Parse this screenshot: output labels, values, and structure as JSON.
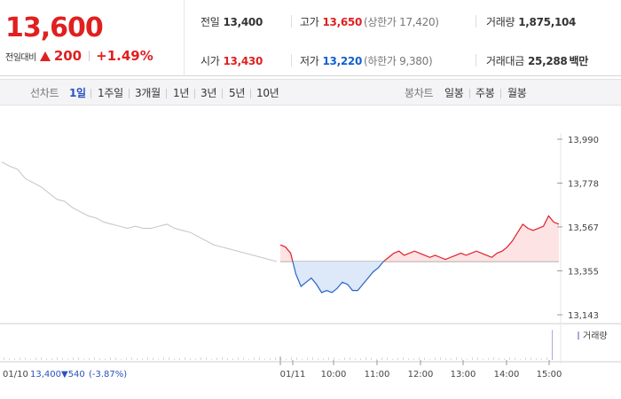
{
  "header": {
    "price": "13,600",
    "change_label": "전일대비",
    "change_value": "200",
    "change_pct": "+1.49%"
  },
  "stats": {
    "prev_label": "전일",
    "prev_value": "13,400",
    "high_label": "고가",
    "high_value": "13,650",
    "upper_limit": "(상한가 17,420)",
    "volume_label": "거래량",
    "volume_value": "1,875,104",
    "open_label": "시가",
    "open_value": "13,430",
    "low_label": "저가",
    "low_value": "13,220",
    "lower_limit": "(하한가 9,380)",
    "amount_label": "거래대금",
    "amount_value": "25,288",
    "amount_unit": "백만"
  },
  "toolbar": {
    "line_label": "선차트",
    "line_periods": [
      "1일",
      "1주일",
      "3개월",
      "1년",
      "3년",
      "5년",
      "10년"
    ],
    "active_period": "1일",
    "candle_label": "봉차트",
    "candle_periods": [
      "일봉",
      "주봉",
      "월봉"
    ]
  },
  "chart_data": {
    "type": "line",
    "y_ticks": [
      "13,990",
      "13,778",
      "13,567",
      "13,355",
      "13,143"
    ],
    "ylim": [
      13143,
      13990
    ],
    "baseline": 13400,
    "x_ticks": [
      "01/11",
      "10:00",
      "11:00",
      "12:00",
      "13:00",
      "14:00",
      "15:00"
    ],
    "volume_legend": "거래량",
    "prev_day": {
      "date": "01/10",
      "close": "13,400",
      "change": "▼540",
      "change_pct": "(-3.87%)",
      "values": [
        13880,
        13860,
        13845,
        13800,
        13780,
        13760,
        13730,
        13700,
        13690,
        13660,
        13640,
        13620,
        13610,
        13590,
        13580,
        13570,
        13560,
        13570,
        13560,
        13560,
        13570,
        13580,
        13560,
        13550,
        13540,
        13520,
        13500,
        13480,
        13470,
        13460,
        13450,
        13440,
        13430,
        13420,
        13410,
        13400
      ]
    },
    "today": {
      "values": [
        13480,
        13470,
        13440,
        13340,
        13280,
        13300,
        13320,
        13290,
        13250,
        13260,
        13250,
        13270,
        13300,
        13290,
        13260,
        13260,
        13290,
        13320,
        13350,
        13370,
        13400,
        13420,
        13440,
        13450,
        13430,
        13440,
        13450,
        13440,
        13430,
        13420,
        13430,
        13420,
        13410,
        13420,
        13430,
        13440,
        13430,
        13440,
        13450,
        13440,
        13430,
        13420,
        13440,
        13450,
        13470,
        13500,
        13540,
        13580,
        13560,
        13550,
        13560,
        13570,
        13620,
        13590,
        13580
      ]
    }
  }
}
